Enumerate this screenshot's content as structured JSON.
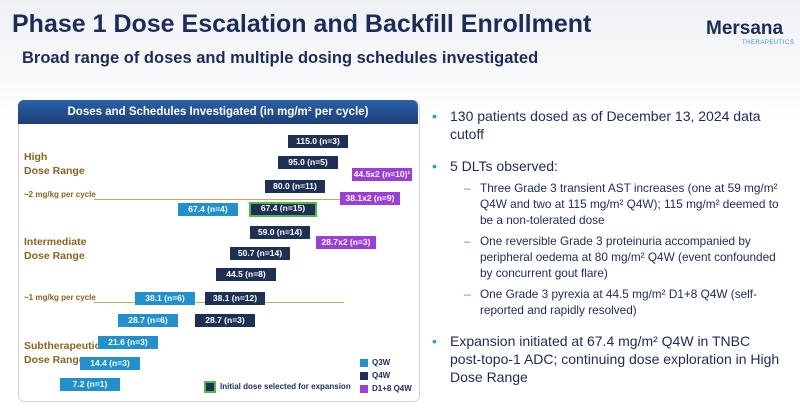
{
  "header": {
    "title": "Phase 1 Dose Escalation and Backfill Enrollment",
    "subtitle": "Broad range of doses and multiple dosing schedules investigated"
  },
  "logo": {
    "name": "Mersana",
    "tagline": "THERAPEUTICS"
  },
  "panel": {
    "title": "Doses and Schedules Investigated (in mg/m² per cycle)",
    "ranges": [
      "High\nDose Range",
      "Intermediate\nDose Range",
      "Subtherapeutic\nDose Range"
    ],
    "thresholds": [
      "~2 mg/kg per cycle",
      "~1 mg/kg per cycle"
    ],
    "boxes": [
      {
        "label": "115.0 (n=3)",
        "color": "#1f3057"
      },
      {
        "label": "95.0 (n=5)",
        "color": "#1f3057"
      },
      {
        "label": "44.5x2 (n=10)¹",
        "color": "#9b3fd8"
      },
      {
        "label": "80.0 (n=11)",
        "color": "#1f3057"
      },
      {
        "label": "38.1x2 (n=9)",
        "color": "#9b3fd8"
      },
      {
        "label": "67.4 (n=4)",
        "color": "#2190cc"
      },
      {
        "label": "67.4 (n=15)",
        "color": "#1f3057",
        "highlight": true
      },
      {
        "label": "59.0 (n=14)",
        "color": "#1f3057"
      },
      {
        "label": "28.7x2 (n=3)",
        "color": "#9b3fd8"
      },
      {
        "label": "50.7 (n=14)",
        "color": "#1f3057"
      },
      {
        "label": "44.5 (n=8)",
        "color": "#1f3057"
      },
      {
        "label": "38.1 (n=6)",
        "color": "#2190cc"
      },
      {
        "label": "38.1 (n=12)",
        "color": "#1f3057"
      },
      {
        "label": "28.7 (n=6)",
        "color": "#2190cc"
      },
      {
        "label": "28.7 (n=3)",
        "color": "#1f3057"
      },
      {
        "label": "21.6 (n=3)",
        "color": "#2190cc"
      },
      {
        "label": "14.4 (n=3)",
        "color": "#2190cc"
      },
      {
        "label": "7.2 (n=1)",
        "color": "#2190cc"
      }
    ],
    "legend": [
      {
        "label": "Q3W",
        "color": "#2190cc"
      },
      {
        "label": "Q4W",
        "color": "#1f3057"
      },
      {
        "label": "D1+8 Q4W",
        "color": "#9b3fd8"
      }
    ],
    "initial_dose_note": "Initial dose selected for expansion"
  },
  "bullets": [
    {
      "text": "130 patients dosed as of December 13, 2024 data cutoff"
    },
    {
      "text": "5 DLTs observed:",
      "subitems": [
        "Three Grade 3 transient AST increases (one at 59 mg/m² Q4W and two at 115 mg/m² Q4W); 115 mg/m² deemed to be a non-tolerated dose",
        "One reversible Grade 3 proteinuria accompanied by peripheral oedema at 80 mg/m² Q4W (event confounded by concurrent gout flare)",
        "One Grade 3 pyrexia at 44.5 mg/m² D1+8 Q4W (self-reported and rapidly resolved)"
      ]
    },
    {
      "text": "Expansion initiated at 67.4 mg/m² Q4W in TNBC post-topo-1 ADC; continuing dose exploration in High Dose Range"
    }
  ]
}
